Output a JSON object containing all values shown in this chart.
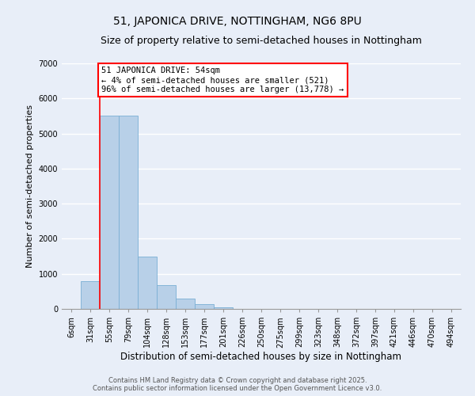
{
  "title": "51, JAPONICA DRIVE, NOTTINGHAM, NG6 8PU",
  "subtitle": "Size of property relative to semi-detached houses in Nottingham",
  "xlabel": "Distribution of semi-detached houses by size in Nottingham",
  "ylabel": "Number of semi-detached properties",
  "categories": [
    "6sqm",
    "31sqm",
    "55sqm",
    "79sqm",
    "104sqm",
    "128sqm",
    "153sqm",
    "177sqm",
    "201sqm",
    "226sqm",
    "250sqm",
    "275sqm",
    "299sqm",
    "323sqm",
    "348sqm",
    "372sqm",
    "397sqm",
    "421sqm",
    "446sqm",
    "470sqm",
    "494sqm"
  ],
  "values": [
    0,
    800,
    5500,
    5500,
    1480,
    680,
    290,
    130,
    50,
    10,
    0,
    0,
    0,
    0,
    0,
    0,
    0,
    0,
    0,
    0,
    0
  ],
  "bar_color": "#b8d0e8",
  "bar_edge_color": "#7aafd4",
  "annotation_box_text": "51 JAPONICA DRIVE: 54sqm\n← 4% of semi-detached houses are smaller (521)\n96% of semi-detached houses are larger (13,778) →",
  "annotation_box_color": "white",
  "annotation_box_edge_color": "red",
  "vline_color": "red",
  "vline_x": 1.5,
  "ylim": [
    0,
    7000
  ],
  "yticks": [
    0,
    1000,
    2000,
    3000,
    4000,
    5000,
    6000,
    7000
  ],
  "background_color": "#e8eef8",
  "grid_color": "white",
  "footer_line1": "Contains HM Land Registry data © Crown copyright and database right 2025.",
  "footer_line2": "Contains public sector information licensed under the Open Government Licence v3.0.",
  "title_fontsize": 10,
  "subtitle_fontsize": 9,
  "xlabel_fontsize": 8.5,
  "ylabel_fontsize": 8,
  "tick_fontsize": 7,
  "footer_fontsize": 6,
  "annotation_fontsize": 7.5
}
